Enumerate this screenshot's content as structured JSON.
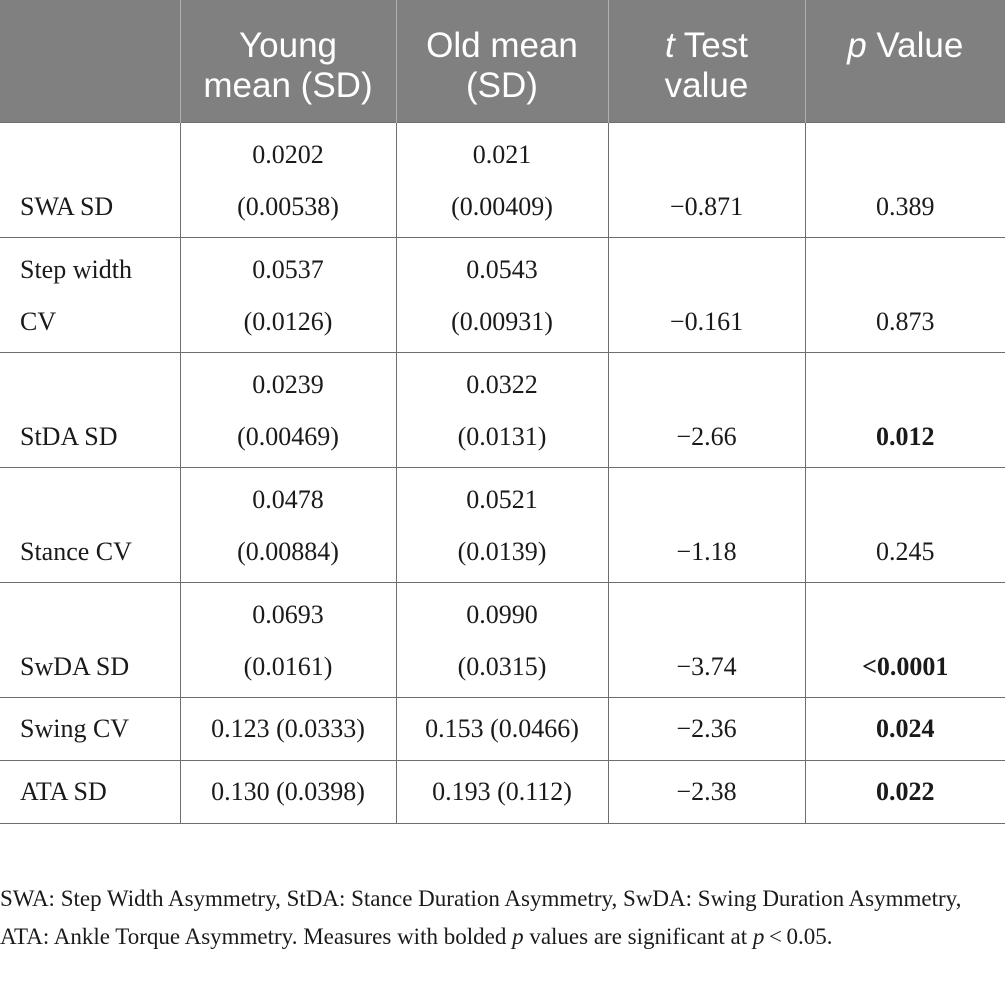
{
  "table": {
    "header": {
      "col0": "",
      "col1": "Young mean (SD)",
      "col2": "Old mean (SD)",
      "col3_italic": "t",
      "col3_rest": " Test value",
      "col4_italic": "p",
      "col4_rest": " Value"
    },
    "rows": [
      {
        "label": "SWA SD",
        "young_mean": "0.0202",
        "young_sd": "(0.00538)",
        "old_mean": "0.021",
        "old_sd": "(0.00409)",
        "t": "−0.871",
        "p": "0.389",
        "p_bold": false
      },
      {
        "label_line1": "Step width",
        "label_line2": "CV",
        "young_mean": "0.0537",
        "young_sd": "(0.0126)",
        "old_mean": "0.0543",
        "old_sd": "(0.00931)",
        "t": "−0.161",
        "p": "0.873",
        "p_bold": false
      },
      {
        "label": "StDA SD",
        "young_mean": "0.0239",
        "young_sd": "(0.00469)",
        "old_mean": "0.0322",
        "old_sd": "(0.0131)",
        "t": "−2.66",
        "p": "0.012",
        "p_bold": true
      },
      {
        "label": "Stance CV",
        "young_mean": "0.0478",
        "young_sd": "(0.00884)",
        "old_mean": "0.0521",
        "old_sd": "(0.0139)",
        "t": "−1.18",
        "p": "0.245",
        "p_bold": false
      },
      {
        "label": "SwDA SD",
        "young_mean": "0.0693",
        "young_sd": "(0.0161)",
        "old_mean": "0.0990",
        "old_sd": "(0.0315)",
        "t": "−3.74",
        "p": "<0.0001",
        "p_bold": true
      },
      {
        "label": "Swing CV",
        "young": "0.123 (0.0333)",
        "old": "0.153 (0.0466)",
        "t": "−2.36",
        "p": "0.024",
        "p_bold": true
      },
      {
        "label": "ATA SD",
        "young": "0.130 (0.0398)",
        "old": "0.193 (0.112)",
        "t": "−2.38",
        "p": "0.022",
        "p_bold": true
      }
    ]
  },
  "footnote": {
    "part1": "SWA: Step Width Asymmetry, StDA: Stance Duration Asymmetry, SwDA: Swing Duration Asymmetry, ATA: Ankle Torque Asymmetry. Measures with bolded ",
    "p_italic1": "p",
    "part2": " values are significant at ",
    "p_italic2": "p",
    "part3": " < 0.05."
  }
}
